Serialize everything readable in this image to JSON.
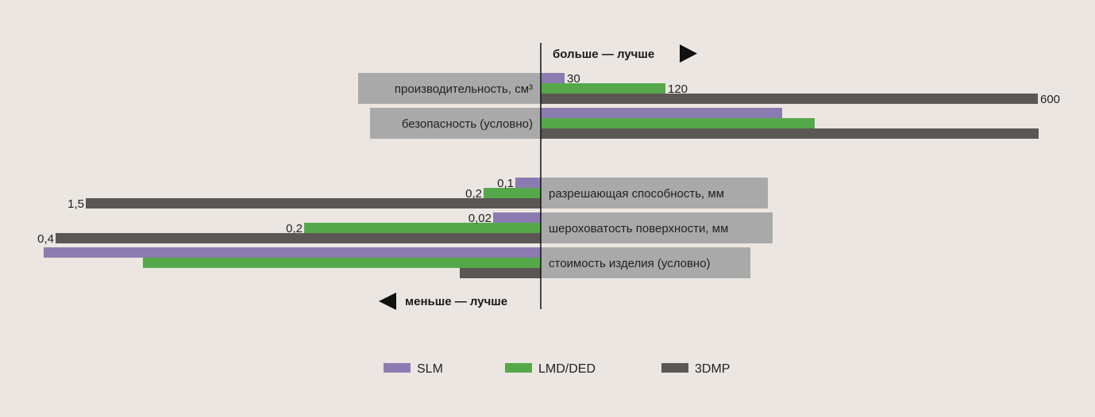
{
  "chart_data": {
    "type": "bar",
    "orientation": "horizontal-diverging",
    "header_right": "больше — лучше",
    "header_left": "меньше — лучше",
    "series": [
      {
        "name": "SLM",
        "color": "#8c7bb0"
      },
      {
        "name": "LMD/DED",
        "color": "#55a84a"
      },
      {
        "name": "3DMP",
        "color": "#5a5755"
      }
    ],
    "groups": [
      {
        "label": "производительность, см³",
        "direction": "right",
        "values": [
          30,
          120,
          600
        ],
        "value_labels": [
          "30",
          "120",
          "600"
        ]
      },
      {
        "label": "безопасность (условно)",
        "direction": "right",
        "values": [
          5,
          6.5,
          10
        ],
        "value_labels": [
          "",
          "",
          ""
        ]
      },
      {
        "label": "разрешающая способность, мм",
        "direction": "left",
        "values": [
          0.1,
          0.2,
          1.5
        ],
        "value_labels": [
          "0,1",
          "0,2",
          "1,5"
        ]
      },
      {
        "label": "шероховатость поверхности, мм",
        "direction": "left",
        "values": [
          0.02,
          0.2,
          0.4
        ],
        "value_labels": [
          "0,02",
          "0,2",
          "0,4"
        ]
      },
      {
        "label": "стоимость изделия (условно)",
        "direction": "left",
        "values": [
          10,
          8,
          1.6
        ],
        "value_labels": [
          "",
          "",
          ""
        ]
      }
    ]
  }
}
